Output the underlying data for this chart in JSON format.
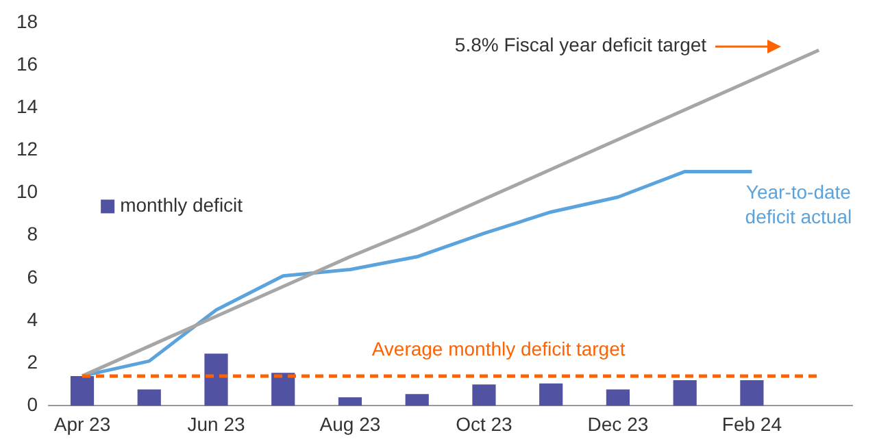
{
  "chart_data": {
    "type": "bar",
    "categories": [
      "Apr 23",
      null,
      "Jun 23",
      null,
      "Aug 23",
      null,
      "Oct 23",
      null,
      "Dec 23",
      null,
      "Feb 24",
      null
    ],
    "series": [
      {
        "name": "monthly deficit",
        "color": "#5252a3",
        "values": [
          1.4,
          0.77,
          2.45,
          1.55,
          0.4,
          0.55,
          1.0,
          1.05,
          0.77,
          1.2,
          1.2,
          null
        ]
      },
      {
        "type": "line",
        "name": "5.8% Fiscal year deficit target",
        "color": "#a6a6a6",
        "values": [
          1.4,
          2.8,
          4.2,
          5.6,
          7.0,
          8.3,
          9.7,
          11.1,
          12.5,
          13.9,
          15.3,
          16.7
        ]
      },
      {
        "type": "line",
        "name": "Year-to-date deficit actual",
        "color": "#5ba3dc",
        "values": [
          1.4,
          2.1,
          4.5,
          6.1,
          6.4,
          7.0,
          8.1,
          9.1,
          9.8,
          11.0,
          11.0,
          null
        ]
      }
    ],
    "ylim": [
      0,
      18
    ],
    "yticks": [
      0,
      2,
      4,
      6,
      8,
      10,
      12,
      14,
      16,
      18
    ],
    "grid": false,
    "legend": "left",
    "marker": "none",
    "ref_lines": [
      {
        "axis": "y",
        "value": 1.4,
        "label": "Average monthly deficit target",
        "color": "#ff6200",
        "line_style": "dashed"
      }
    ]
  }
}
